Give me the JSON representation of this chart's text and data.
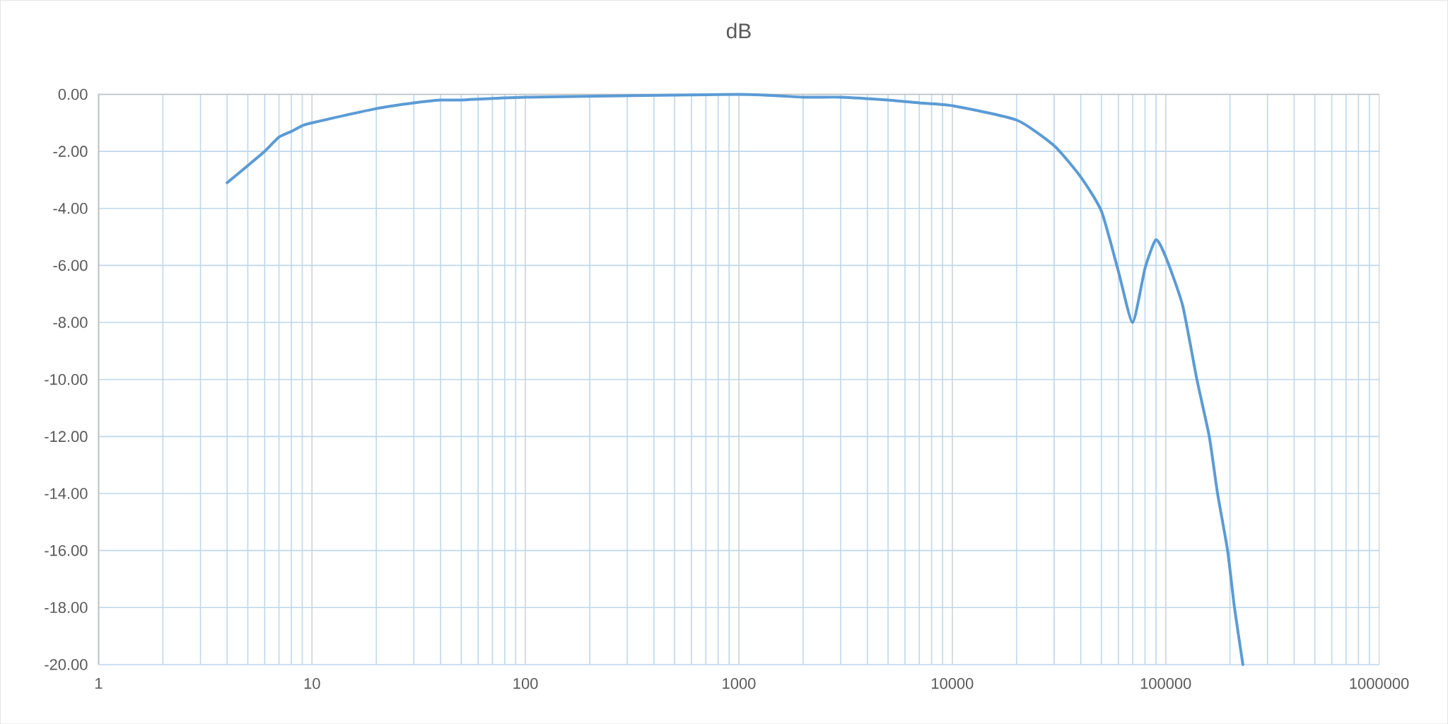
{
  "chart_data": {
    "type": "line",
    "title": "dB",
    "log": "x",
    "grid": true,
    "marker": "none",
    "line_style": "solid",
    "xlim": [
      1,
      1000000
    ],
    "xticks": [
      1,
      10,
      100,
      1000,
      10000,
      100000,
      1000000
    ],
    "ylim": [
      -20,
      0
    ],
    "yticks": [
      {
        "value": 0,
        "label": "0.00"
      },
      {
        "value": -2,
        "label": "-2.00"
      },
      {
        "value": -4,
        "label": "-4.00"
      },
      {
        "value": -6,
        "label": "-6.00"
      },
      {
        "value": -8,
        "label": "-8.00"
      },
      {
        "value": -10,
        "label": "-10.00"
      },
      {
        "value": -12,
        "label": "-12.00"
      },
      {
        "value": -14,
        "label": "-14.00"
      },
      {
        "value": -16,
        "label": "-16.00"
      },
      {
        "value": -18,
        "label": "-18.00"
      },
      {
        "value": -20,
        "label": "-20.00"
      }
    ],
    "x": [
      4,
      5,
      6,
      7,
      8,
      9,
      10,
      20,
      30,
      40,
      50,
      100,
      1000,
      2000,
      3000,
      5000,
      7000,
      10000,
      20000,
      30000,
      40000,
      50000,
      60000,
      70000,
      80000,
      90000,
      100000,
      120000,
      140000,
      160000,
      175000,
      195000,
      210000,
      230000
    ],
    "values": [
      -3.1,
      -2.5,
      -2.0,
      -1.5,
      -1.3,
      -1.1,
      -1.0,
      -0.5,
      -0.3,
      -0.2,
      -0.2,
      -0.1,
      0.0,
      -0.1,
      -0.1,
      -0.2,
      -0.3,
      -0.4,
      -0.9,
      -1.8,
      -2.9,
      -4.1,
      -6.2,
      -8.0,
      -6.1,
      -5.1,
      -5.7,
      -7.4,
      -10.0,
      -12.0,
      -14.0,
      -16.0,
      -18.0,
      -20.0
    ],
    "color": "#5b9bd5"
  }
}
